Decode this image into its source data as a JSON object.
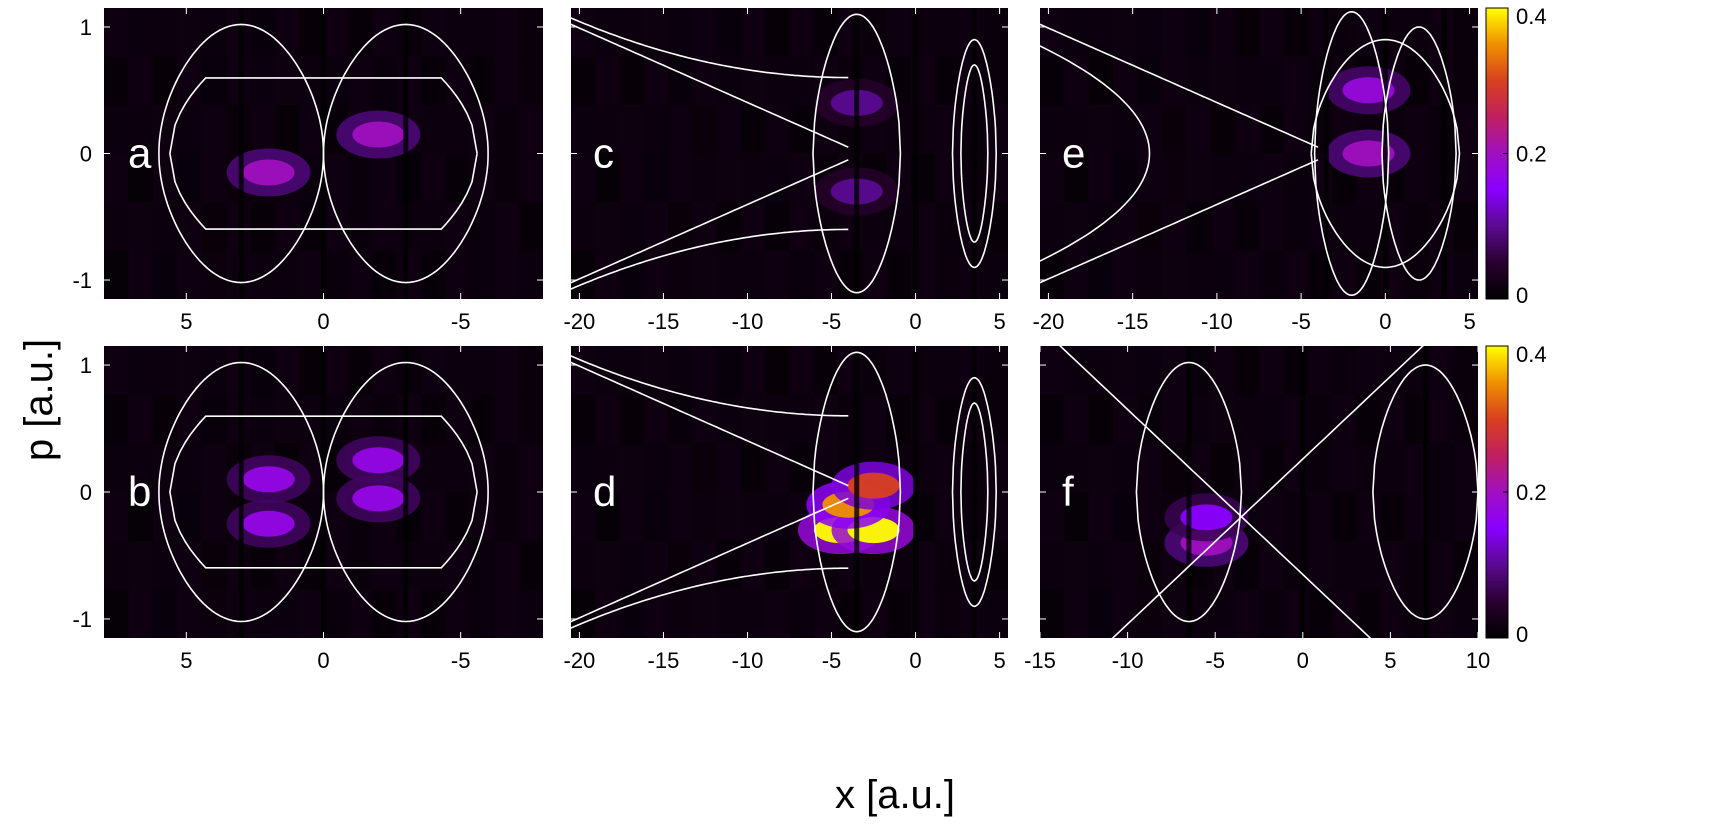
{
  "figure": {
    "ylabel": "p [a.u.]",
    "xlabel": "x [a.u.]"
  },
  "colorbar": {
    "range": [
      0,
      0.4
    ],
    "ticks": [
      "0.4",
      "0.2",
      "0"
    ],
    "tick_values": [
      0.4,
      0.2,
      0
    ],
    "colors": [
      "#000000",
      "#2a0030",
      "#5a0a90",
      "#8a00ff",
      "#a010c0",
      "#c02060",
      "#d84020",
      "#f09000",
      "#ffff00"
    ]
  },
  "chart_data": [
    {
      "type": "heatmap",
      "panel_label": "a",
      "x_reversed": true,
      "xlim": [
        8,
        -8
      ],
      "ylim": [
        -1.15,
        1.15
      ],
      "xticks": [
        "5",
        "0",
        "-5"
      ],
      "xtick_values": [
        5,
        0,
        -5
      ],
      "yticks": [
        "1",
        "0",
        "-1"
      ],
      "ytick_values": [
        1,
        0,
        -1
      ],
      "separatrix": "figure-eight (two lobes crossing at x=0, p=0)",
      "hot_spots": [
        {
          "x": 2.0,
          "p": -0.15,
          "value": 0.2
        },
        {
          "x": -2.0,
          "p": 0.15,
          "value": 0.2
        }
      ]
    },
    {
      "type": "heatmap",
      "panel_label": "b",
      "x_reversed": true,
      "xlim": [
        8,
        -8
      ],
      "ylim": [
        -1.15,
        1.15
      ],
      "xticks": [
        "5",
        "0",
        "-5"
      ],
      "xtick_values": [
        5,
        0,
        -5
      ],
      "yticks": [
        "1",
        "0",
        "-1"
      ],
      "ytick_values": [
        1,
        0,
        -1
      ],
      "separatrix": "figure-eight (two lobes crossing at x=0, p=0)",
      "hot_spots": [
        {
          "x": 2.0,
          "p": 0.1,
          "value": 0.17
        },
        {
          "x": 2.0,
          "p": -0.25,
          "value": 0.17
        },
        {
          "x": -2.0,
          "p": 0.25,
          "value": 0.17
        },
        {
          "x": -2.0,
          "p": -0.05,
          "value": 0.17
        }
      ]
    },
    {
      "type": "heatmap",
      "panel_label": "c",
      "xlim": [
        -20.5,
        5.5
      ],
      "ylim": [
        -1.15,
        1.15
      ],
      "xticks": [
        "-20",
        "-15",
        "-10",
        "-5",
        "0",
        "5"
      ],
      "xtick_values": [
        -20,
        -15,
        -10,
        -5,
        0,
        5
      ],
      "hot_spots": [
        {
          "x": -3.5,
          "p": 0.4,
          "value": 0.1
        },
        {
          "x": -3.5,
          "p": -0.3,
          "value": 0.1
        }
      ]
    },
    {
      "type": "heatmap",
      "panel_label": "d",
      "xlim": [
        -20.5,
        5.5
      ],
      "ylim": [
        -1.15,
        1.15
      ],
      "xticks": [
        "-20",
        "-15",
        "-10",
        "-5",
        "0",
        "5"
      ],
      "xtick_values": [
        -20,
        -15,
        -10,
        -5,
        0,
        5
      ],
      "hot_spots": [
        {
          "x": -4.5,
          "p": -0.3,
          "value": 0.4
        },
        {
          "x": -2.5,
          "p": -0.3,
          "value": 0.4
        },
        {
          "x": -4.0,
          "p": -0.1,
          "value": 0.35
        },
        {
          "x": -2.5,
          "p": 0.05,
          "value": 0.3
        }
      ]
    },
    {
      "type": "heatmap",
      "panel_label": "e",
      "xlim": [
        -20.5,
        5.5
      ],
      "ylim": [
        -1.15,
        1.15
      ],
      "xticks": [
        "-20",
        "-15",
        "-10",
        "-5",
        "0",
        "5"
      ],
      "xtick_values": [
        -20,
        -15,
        -10,
        -5,
        0,
        5
      ],
      "hot_spots": [
        {
          "x": -1.0,
          "p": 0.5,
          "value": 0.18
        },
        {
          "x": -1.0,
          "p": 0.0,
          "value": 0.2
        }
      ]
    },
    {
      "type": "heatmap",
      "panel_label": "f",
      "xlim": [
        -15,
        10
      ],
      "ylim": [
        -1.15,
        1.15
      ],
      "xticks": [
        "-15",
        "-10",
        "-5",
        "0",
        "5",
        "10"
      ],
      "xtick_values": [
        -15,
        -10,
        -5,
        0,
        5,
        10
      ],
      "hot_spots": [
        {
          "x": -5.5,
          "p": -0.4,
          "value": 0.2
        },
        {
          "x": -5.5,
          "p": -0.2,
          "value": 0.15
        }
      ]
    }
  ]
}
